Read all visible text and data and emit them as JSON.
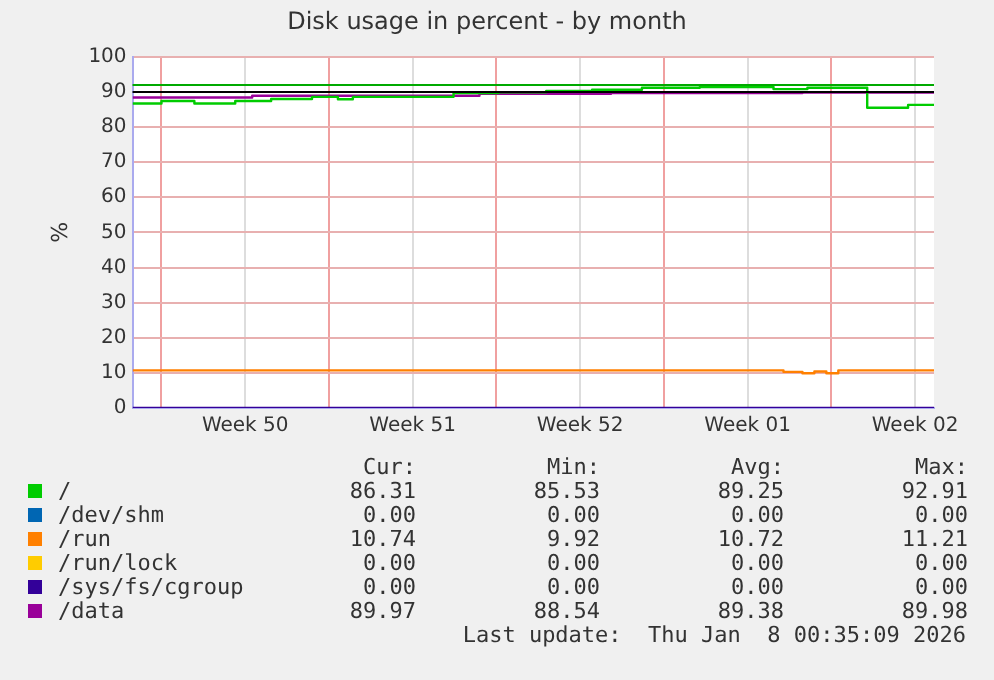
{
  "chart_data": {
    "type": "step",
    "title": "Disk usage in percent - by month",
    "ylabel": "%",
    "xlim": [
      "2025-12-06T19:00",
      "2026-01-09T07:00"
    ],
    "xticks": [
      {
        "value": "2025-12-08T00:00",
        "label": null
      },
      {
        "value": "2025-12-11T12:00",
        "label": "Week 50"
      },
      {
        "value": "2025-12-15T00:00",
        "label": null
      },
      {
        "value": "2025-12-18T12:00",
        "label": "Week 51"
      },
      {
        "value": "2025-12-22T00:00",
        "label": null
      },
      {
        "value": "2025-12-25T12:00",
        "label": "Week 52"
      },
      {
        "value": "2025-12-29T00:00",
        "label": null
      },
      {
        "value": "2026-01-01T12:00",
        "label": "Week 01"
      },
      {
        "value": "2026-01-05T00:00",
        "label": null
      },
      {
        "value": "2026-01-08T12:00",
        "label": "Week 02"
      }
    ],
    "ylim": [
      0,
      100
    ],
    "yticks": [
      0,
      10,
      20,
      30,
      40,
      50,
      60,
      70,
      80,
      90,
      100
    ],
    "grid": true,
    "legend": "bottom",
    "series": [
      {
        "name": "/",
        "color": "#00cc00",
        "x": [
          "2025-12-06T19:00",
          "2025-12-08T00:00",
          "2025-12-09T09:00",
          "2025-12-11T02:00",
          "2025-12-12T14:00",
          "2025-12-14T07:00",
          "2025-12-15T09:00",
          "2025-12-16T00:00",
          "2025-12-20T05:00",
          "2025-12-22T02:00",
          "2025-12-24T02:00",
          "2025-12-26T00:00",
          "2025-12-28T02:00",
          "2025-12-30T12:00",
          "2026-01-02T14:00",
          "2026-01-04T00:00",
          "2026-01-06T12:00",
          "2026-01-08T05:00",
          "2026-01-09T07:00"
        ],
        "values": [
          86.7,
          87.4,
          86.7,
          87.4,
          88.0,
          88.6,
          87.9,
          88.6,
          89.7,
          89.9,
          90.3,
          90.6,
          91.2,
          91.4,
          90.8,
          91.2,
          85.5,
          86.3,
          86.3
        ]
      },
      {
        "name": "/dev/shm",
        "color": "#0066b3"
      },
      {
        "name": "/run",
        "color": "#ff8000",
        "x": [
          "2025-12-06T19:00",
          "2026-01-03T00:00",
          "2026-01-03T19:00",
          "2026-01-04T07:00",
          "2026-01-04T19:00",
          "2026-01-05T07:00",
          "2026-01-09T07:00"
        ],
        "values": [
          10.7,
          10.3,
          9.9,
          10.4,
          9.9,
          10.7,
          10.7
        ]
      },
      {
        "name": "/run/lock",
        "color": "#ffcc00"
      },
      {
        "name": "/sys/fs/cgroup",
        "color": "#330099",
        "x": [
          "2025-12-06T19:00",
          "2026-01-09T07:00"
        ],
        "values": [
          0,
          0
        ]
      },
      {
        "name": "/data",
        "color": "#990099",
        "x": [
          "2025-12-06T19:00",
          "2025-12-11T19:00",
          "2025-12-21T07:00",
          "2025-12-26T19:00",
          "2026-01-03T19:00",
          "2026-01-09T07:00"
        ],
        "values": [
          88.4,
          88.9,
          89.5,
          89.7,
          89.8,
          89.8
        ]
      }
    ],
    "ref_lines": [
      {
        "axis": "y",
        "value": 92,
        "color": "#00aa00"
      },
      {
        "axis": "y",
        "value": 90,
        "color": "#000000"
      }
    ],
    "annotations": [
      "Cur:",
      "Min:",
      "Avg:",
      "Max:",
      "86.31",
      "85.53",
      "89.25",
      "92.91",
      "0.00",
      "0.00",
      "0.00",
      "0.00",
      "10.74",
      "9.92",
      "10.72",
      "11.21",
      "0.00",
      "0.00",
      "0.00",
      "0.00",
      "0.00",
      "0.00",
      "0.00",
      "0.00",
      "89.97",
      "88.54",
      "89.38",
      "89.98",
      "Last update:  Thu Jan  8 00:35:09 2026"
    ]
  }
}
